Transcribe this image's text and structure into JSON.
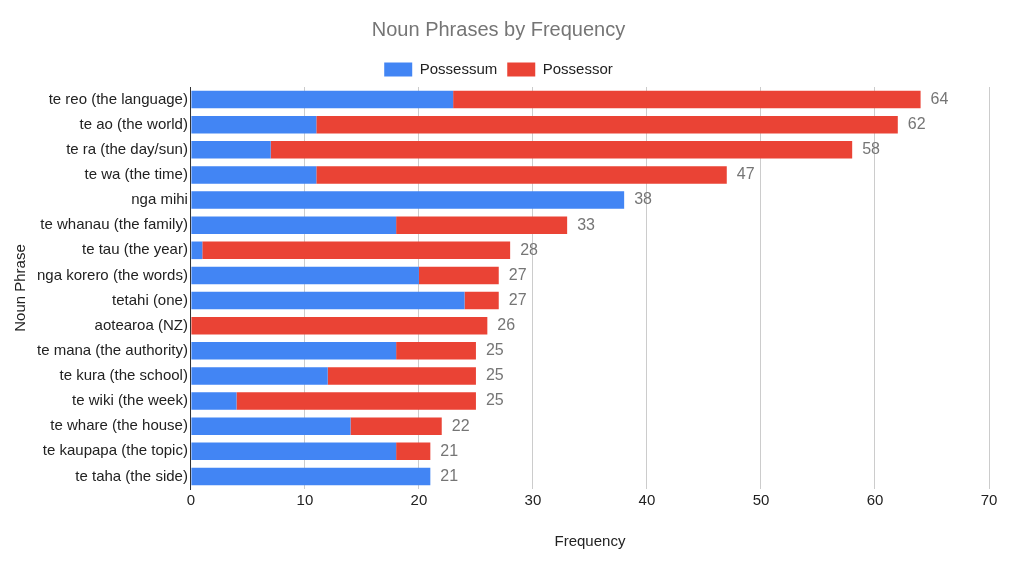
{
  "chart_data": {
    "type": "bar",
    "orientation": "horizontal",
    "stacked": true,
    "title": "Noun Phrases by Frequency",
    "xlabel": "Frequency",
    "ylabel": "Noun Phrase",
    "categories": [
      "te reo (the language)",
      "te ao (the world)",
      "te ra (the day/sun)",
      "te wa (the time)",
      "nga mihi",
      "te whanau (the family)",
      "te tau (the year)",
      "nga korero (the words)",
      "tetahi (one)",
      "aotearoa (NZ)",
      "te mana (the authority)",
      "te kura (the school)",
      "te wiki (the week)",
      "te whare (the house)",
      "te kaupapa (the topic)",
      "te taha (the side)"
    ],
    "series": [
      {
        "name": "Possessum",
        "color": "#4285f4",
        "values": [
          23,
          11,
          7,
          11,
          38,
          18,
          1,
          20,
          24,
          0,
          18,
          12,
          4,
          14,
          18,
          21
        ]
      },
      {
        "name": "Possessor",
        "color": "#ea4335",
        "values": [
          41,
          51,
          51,
          36,
          0,
          15,
          27,
          7,
          3,
          26,
          7,
          13,
          21,
          8,
          3,
          0
        ]
      }
    ],
    "totals": [
      "64",
      "62",
      "58",
      "47",
      "38",
      "33",
      "28",
      "27",
      "27",
      "26",
      "25",
      "25",
      "25",
      "22",
      "21",
      "21"
    ],
    "xlim": [
      0,
      70
    ],
    "xticks": [
      0,
      10,
      20,
      30,
      40,
      50,
      60,
      70
    ],
    "grid": "x",
    "legend": "top"
  }
}
